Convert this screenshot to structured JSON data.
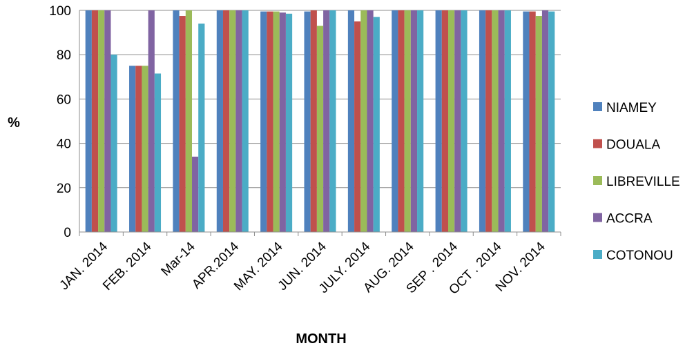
{
  "chart_data": {
    "type": "bar",
    "title": "",
    "xlabel": "MONTH",
    "ylabel": "%",
    "ylim": [
      0,
      100
    ],
    "yticks": [
      0,
      20,
      40,
      60,
      80,
      100
    ],
    "grid": "horizontal",
    "legend_position": "right",
    "categories": [
      "JAN. 2014",
      "FEB. 2014",
      "Mar-14",
      "APR.2014",
      "MAY. 2014",
      "JUN.  2014",
      "JULY. 2014",
      "AUG. 2014",
      "SEP .  2014",
      "OCT . 2014",
      "NOV. 2014"
    ],
    "series": [
      {
        "name": "NIAMEY",
        "color": "#4F81BD",
        "values": [
          100,
          75,
          100,
          100,
          99.5,
          99.5,
          100,
          100,
          100,
          100,
          99.5
        ]
      },
      {
        "name": "DOUALA",
        "color": "#C0504D",
        "values": [
          100,
          75,
          97.5,
          100,
          99.5,
          100,
          95,
          100,
          100,
          100,
          99.5
        ]
      },
      {
        "name": "LIBREVILLE",
        "color": "#9BBB59",
        "values": [
          100,
          75,
          100,
          100,
          99.5,
          93,
          100,
          100,
          100,
          100,
          97.5
        ]
      },
      {
        "name": "ACCRA",
        "color": "#8064A2",
        "values": [
          100,
          100,
          34,
          100,
          99,
          100,
          100,
          100,
          100,
          100,
          100
        ]
      },
      {
        "name": "COTONOU",
        "color": "#4BACC6",
        "values": [
          80,
          71.5,
          94,
          100,
          98.5,
          100,
          97,
          100,
          100,
          100,
          99.5
        ]
      }
    ]
  }
}
